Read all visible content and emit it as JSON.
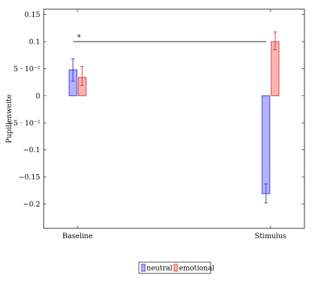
{
  "chart_data": {
    "type": "bar",
    "title": "",
    "xlabel": "",
    "ylabel": "Pupillenweite",
    "categories": [
      "Baseline",
      "Stimulus"
    ],
    "ylim": [
      -0.245,
      0.16
    ],
    "yticks": [
      {
        "value": 0.15,
        "label": "0.15"
      },
      {
        "value": 0.1,
        "label": "0.1"
      },
      {
        "value": 0.05,
        "label": "5 · 10⁻²"
      },
      {
        "value": 0,
        "label": "0"
      },
      {
        "value": -0.05,
        "label": "−5 · 10⁻²"
      },
      {
        "value": -0.1,
        "label": "−0.1"
      },
      {
        "value": -0.15,
        "label": "−0.15"
      },
      {
        "value": -0.2,
        "label": "−0.2"
      }
    ],
    "series": [
      {
        "name": "neutral",
        "color": "#b3b3ff",
        "edge": "#2a2ad4",
        "values": [
          0.048,
          -0.181
        ],
        "error_low": [
          0.027,
          -0.198
        ],
        "error_high": [
          0.068,
          -0.163
        ]
      },
      {
        "name": "emotional",
        "color": "#ffb3b3",
        "edge": "#d42a2a",
        "values": [
          0.034,
          0.1
        ],
        "error_low": [
          0.019,
          0.085
        ],
        "error_high": [
          0.054,
          0.118
        ]
      }
    ],
    "annotations": [
      {
        "type": "significance",
        "text": "*",
        "y": 0.1,
        "from": "Baseline",
        "to": "Stimulus"
      }
    ],
    "legend_position": "bottom-center",
    "grid": false
  }
}
